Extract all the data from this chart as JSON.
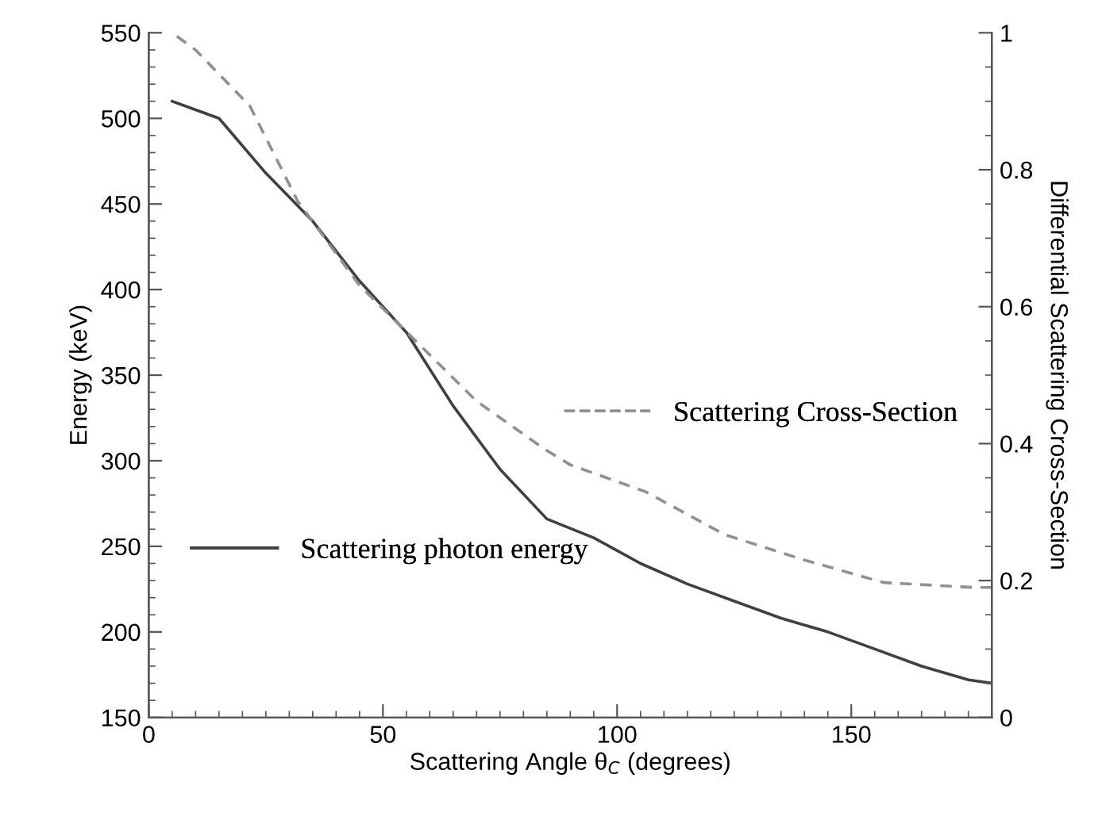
{
  "chart_data": {
    "type": "line",
    "xlabel": "Scattering Angle θ$_{C}$ (degrees)",
    "ylabel": "Energy (keV)",
    "y2label": "Differential Scattering Cross-Section",
    "xlim": [
      0,
      180
    ],
    "xticks": [
      0,
      50,
      100,
      150
    ],
    "ylim": [
      150,
      550
    ],
    "yticks": [
      150,
      200,
      250,
      300,
      350,
      400,
      450,
      500,
      550
    ],
    "y2lim": [
      0,
      1
    ],
    "y2ticks": [
      0,
      0.2,
      0.4,
      0.6,
      0.8,
      1
    ],
    "legend": "center",
    "grid": false,
    "marker": "none",
    "series": [
      {
        "name": "Scattering photon energy",
        "color": "#404040",
        "line_style": "solid",
        "x": [
          5,
          15,
          25,
          35,
          45,
          55,
          65,
          75,
          85,
          95,
          105,
          115,
          125,
          135,
          145,
          155,
          165,
          175,
          180
        ],
        "values": [
          510,
          500,
          468,
          440,
          405,
          375,
          332,
          295,
          266,
          255,
          240,
          228,
          218,
          208,
          200,
          190,
          180,
          172,
          170
        ]
      },
      {
        "name": "Scattering Cross-Section",
        "color": "#909090",
        "line_style": "dashed",
        "axis": "y2",
        "x": [
          6,
          10,
          21.6,
          31.8,
          45,
          70,
          84.5,
          90,
          106,
          123,
          140,
          157,
          176,
          180
        ],
        "values": [
          0.995,
          0.975,
          0.893,
          0.754,
          0.631,
          0.462,
          0.392,
          0.369,
          0.33,
          0.267,
          0.23,
          0.197,
          0.19,
          0.19
        ]
      }
    ]
  }
}
